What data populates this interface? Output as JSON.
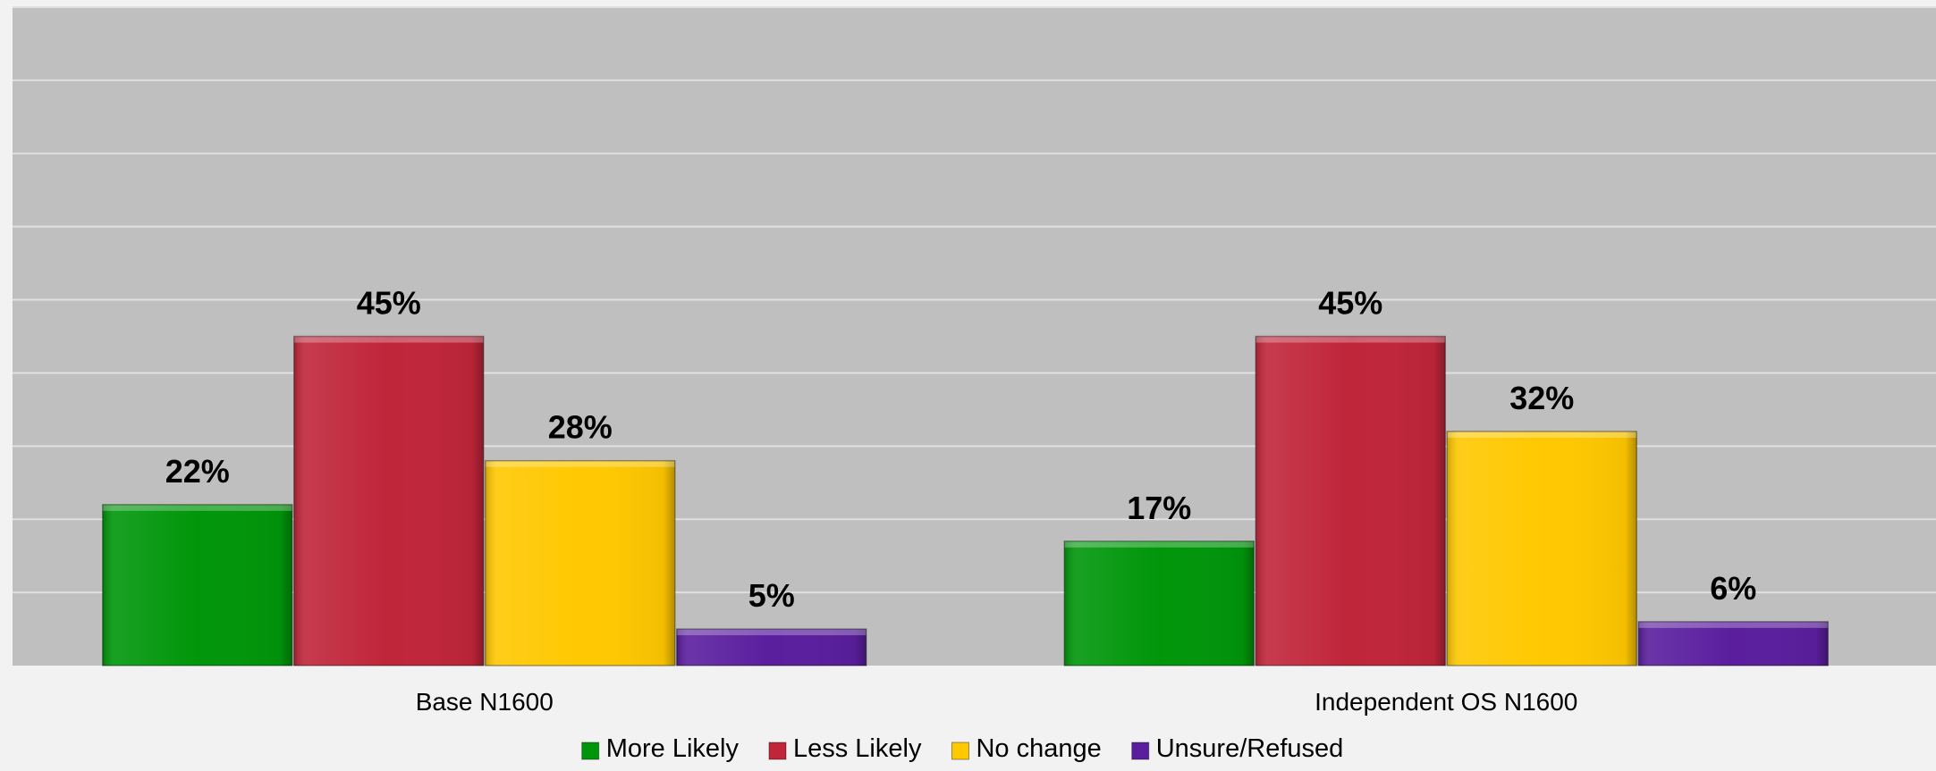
{
  "chart_data": {
    "type": "bar",
    "categories": [
      "Base N1600",
      "Independent OS N1600"
    ],
    "series": [
      {
        "name": "More Likely",
        "values": [
          22,
          17
        ],
        "labels": [
          "22%",
          "17%"
        ],
        "color": "#00960a"
      },
      {
        "name": "Less Likely",
        "values": [
          45,
          45
        ],
        "labels": [
          "45%",
          "45%"
        ],
        "color": "#c0253a"
      },
      {
        "name": "No change",
        "values": [
          28,
          32
        ],
        "labels": [
          "28%",
          "32%"
        ],
        "color": "#ffc800"
      },
      {
        "name": "Unsure/Refused",
        "values": [
          5,
          6
        ],
        "labels": [
          "5%",
          "6%"
        ],
        "color": "#5a1e9e"
      }
    ],
    "ylim": [
      0,
      90
    ],
    "grid": true,
    "legend_position": "bottom",
    "plot_background": "#bfbfbf",
    "page_background": "#f2f2f2",
    "gridline_color": "#e0e0e0"
  }
}
